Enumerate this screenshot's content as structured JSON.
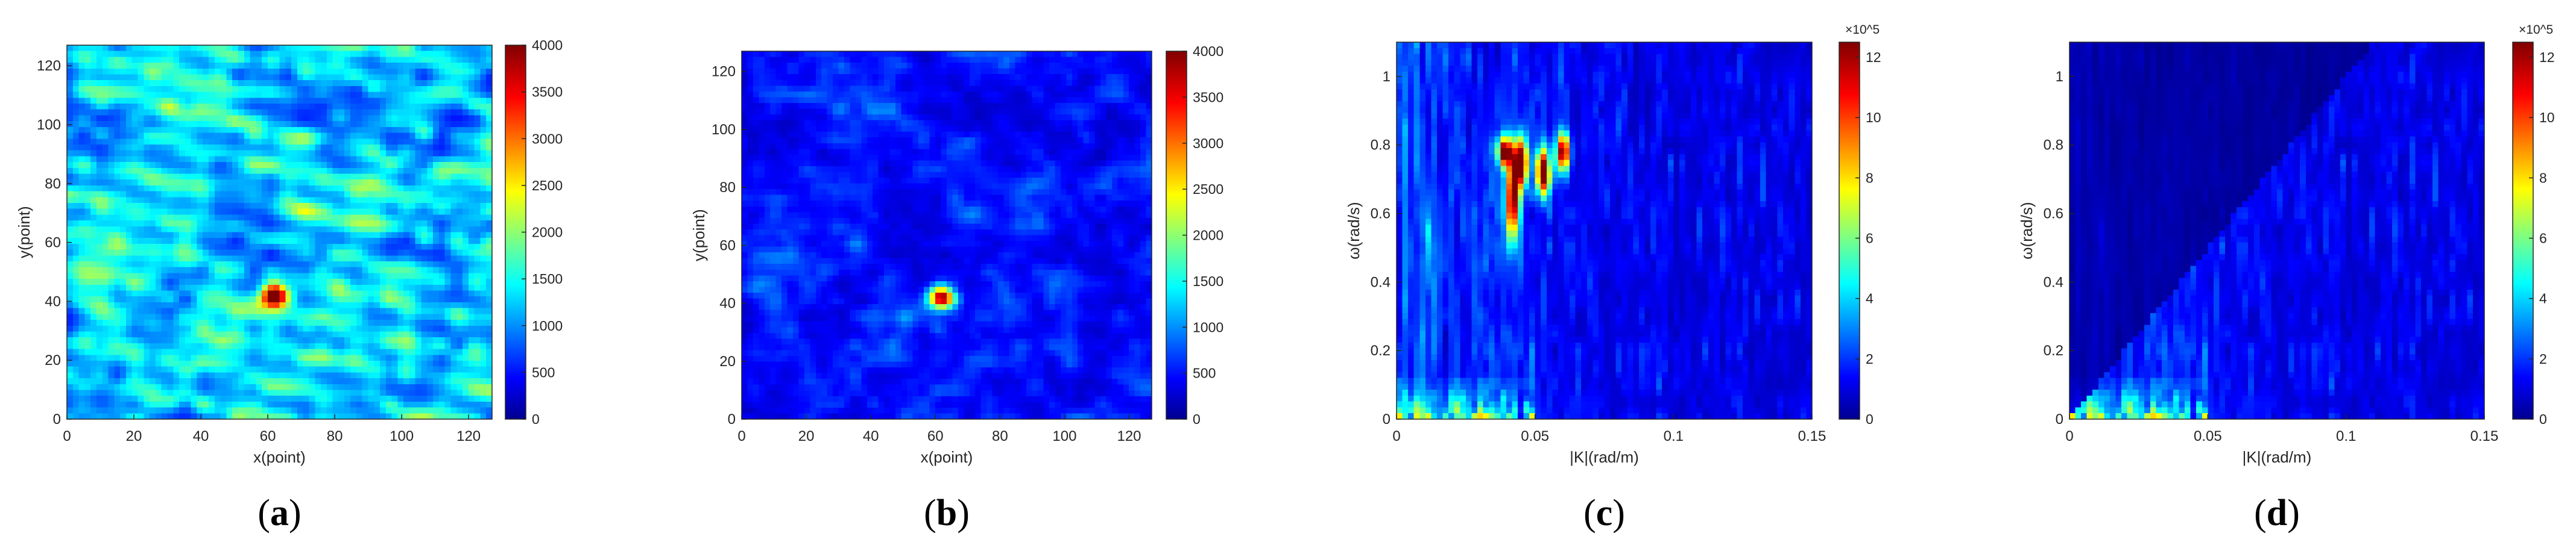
{
  "chart_data": [
    {
      "type": "heatmap",
      "xlabel": "x(point)",
      "ylabel": "y(point)",
      "xlim": [
        0,
        127
      ],
      "ylim": [
        0,
        127
      ],
      "xticks": [
        "0",
        "20",
        "40",
        "60",
        "80",
        "100",
        "120"
      ],
      "yticks": [
        "0",
        "20",
        "40",
        "60",
        "80",
        "100",
        "120"
      ],
      "colorbar": {
        "ticks": [
          "0",
          "500",
          "1000",
          "1500",
          "2000",
          "2500",
          "3000",
          "3500",
          "4000"
        ],
        "range": [
          0,
          4000
        ],
        "exponent": ""
      },
      "caption": {
        "open": "(",
        "letter": "a",
        "close": ")"
      },
      "hotspot": {
        "x": 62,
        "y": 42
      },
      "pattern": "wave-stripes",
      "background_level": 0.45
    },
    {
      "type": "heatmap",
      "xlabel": "x(point)",
      "ylabel": "y(point)",
      "xlim": [
        0,
        127
      ],
      "ylim": [
        0,
        127
      ],
      "xticks": [
        "0",
        "20",
        "40",
        "60",
        "80",
        "100",
        "120"
      ],
      "yticks": [
        "0",
        "20",
        "40",
        "60",
        "80",
        "100",
        "120"
      ],
      "colorbar": {
        "ticks": [
          "0",
          "500",
          "1000",
          "1500",
          "2000",
          "2500",
          "3000",
          "3500",
          "4000"
        ],
        "range": [
          0,
          4000
        ],
        "exponent": ""
      },
      "caption": {
        "open": "(",
        "letter": "b",
        "close": ")"
      },
      "hotspot": {
        "x": 62,
        "y": 42
      },
      "pattern": "suppressed",
      "background_level": 0.18
    },
    {
      "type": "heatmap",
      "xlabel": "|K|(rad/m)",
      "ylabel": "ω(rad/s)",
      "xlim": [
        0,
        0.15
      ],
      "ylim": [
        0,
        1.1
      ],
      "xticks": [
        "0",
        "0.05",
        "0.1",
        "0.15"
      ],
      "yticks": [
        "0",
        "0.2",
        "0.4",
        "0.6",
        "0.8",
        "1"
      ],
      "colorbar": {
        "ticks": [
          "0",
          "2",
          "4",
          "6",
          "8",
          "10",
          "12"
        ],
        "range": [
          0,
          12.5
        ],
        "exponent": "×10^5"
      },
      "caption": {
        "open": "(",
        "letter": "c",
        "close": ")"
      },
      "pattern": "spectrum-with-target",
      "background_level": 0.3
    },
    {
      "type": "heatmap",
      "xlabel": "|K|(rad/m)",
      "ylabel": "ω(rad/s)",
      "xlim": [
        0,
        0.15
      ],
      "ylim": [
        0,
        1.1
      ],
      "xticks": [
        "0",
        "0.05",
        "0.1",
        "0.15"
      ],
      "yticks": [
        "0",
        "0.2",
        "0.4",
        "0.6",
        "0.8",
        "1"
      ],
      "colorbar": {
        "ticks": [
          "0",
          "2",
          "4",
          "6",
          "8",
          "10",
          "12"
        ],
        "range": [
          0,
          12.5
        ],
        "exponent": "×10^5"
      },
      "caption": {
        "open": "(",
        "letter": "d",
        "close": ")"
      },
      "pattern": "spectrum-filtered",
      "background_level": 0.25
    }
  ]
}
